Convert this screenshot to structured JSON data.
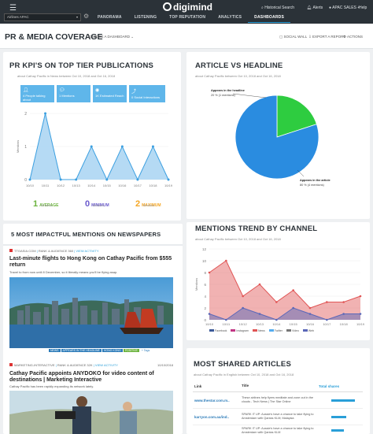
{
  "topbar": {
    "logo": "digimind",
    "account": "Airlines APAC",
    "nav": [
      "PANORAMA",
      "LISTENING",
      "TOP REPUTATION",
      "ANALYTICS",
      "DASHBOARDS"
    ],
    "historical_search": "Historical Search",
    "alerts": "Alerts",
    "user": "APAC SALES +",
    "help": "Help"
  },
  "subbar": {
    "title": "PR & MEDIA COVERAGE",
    "choose": "CHOOSE A DASHBOARD",
    "social_wall": "SOCIAL WALL",
    "export": "EXPORT A REPORT",
    "actions": "ACTIONS"
  },
  "pr_kpis": {
    "title": "PR KPI'S ON TOP TIER PUBLICATIONS",
    "meta": "about Cathay Pacific in News between Oct 10, 2018 and Oct 16, 2018",
    "stats": [
      {
        "value": "4",
        "label": "People talking about"
      },
      {
        "value": "1",
        "label": "Mentions"
      },
      {
        "value": "1K",
        "label": "Estimated Reach"
      },
      {
        "value": "0",
        "label": "Social Interactions"
      }
    ],
    "ylabel": "Mentions",
    "kpis": [
      {
        "value": "1",
        "label": "AVERAGE",
        "sub": "Mentions",
        "color": "#6bb33d"
      },
      {
        "value": "0",
        "label": "MINIMUM",
        "sub": "Mentions",
        "color": "#6a5acd"
      },
      {
        "value": "2",
        "label": "MAXIMUM",
        "sub": "Mentions",
        "color": "#f5a623"
      }
    ]
  },
  "article_vs_headline": {
    "title": "ARTICLE VS HEADLINE",
    "meta": "about Cathay Pacific between Oct 10, 2018 and Oct 16, 2018",
    "label_headline": "Appears in the headline",
    "label_headline_val": "20 % (1 mentions)",
    "label_article": "Appears in the article",
    "label_article_val": "80 % (4 mentions)"
  },
  "impactful": {
    "title": "5 MOST IMPACTFUL MENTIONS ON NEWSPAPERS",
    "items": [
      {
        "source": "TTGASIA.COM",
        "meta": "RANK & AUDIENCE 360",
        "view": "VIEW ACTIVITY",
        "headline": "Last-minute flights to Hong Kong on Cathay Pacific from $555 return",
        "snippet": "Travel to from now until 8 December, so it literally means you'll be flying asap."
      },
      {
        "source": "MARKETING-INTERACTIVE",
        "meta": "RANK & AUDIENCE 32K",
        "view": "VIEW ACTIVITY",
        "date": "10/10/2018",
        "headline": "Cathay Pacific appoints ANYDOKO for video content of destinations | Marketing Interactive",
        "snippet": "Cathay Pacific has been rapidly expanding its network lately."
      }
    ],
    "tags": [
      "NEWS",
      "APPEARS IN THE HEADLINE",
      "HONG KONG",
      "POSITIVE"
    ],
    "tag_more": "+ Tags"
  },
  "mentions_trend": {
    "title": "MENTIONS TREND BY CHANNEL",
    "meta": "about Cathay Pacific between Oct 10, 2018 and Oct 16, 2018",
    "ylabel": "Mentions",
    "legend": [
      "Facebook",
      "Instagram",
      "News",
      "Twitter",
      "Video",
      "Web"
    ]
  },
  "shared": {
    "title": "MOST SHARED ARTICLES",
    "meta": "about Cathay Pacific in English between Oct 10, 2018 and Oct 16, 2018",
    "headers": [
      "Link",
      "Title",
      "Total shares"
    ],
    "rows": [
      {
        "link": "www.thestar.com.m..",
        "title": "These airlines help flyers meditate and zone out in the clouds - Tech News | The Star Online",
        "bar": 0.55
      },
      {
        "link": "karryon.com.au/ind..",
        "title": "SPARK IT UP: Aussie's have a chance to take flying to Amsterdam with Qantas KLM; Malaysia",
        "bar": 0.35
      },
      {
        "link": "",
        "title": "SPARK IT UP: Aussie's have a chance to take flying to Amsterdam with Qantas KLM",
        "bar": 0.3
      }
    ]
  },
  "chart_data": [
    {
      "type": "area",
      "title": "",
      "ylabel": "Mentions",
      "x": [
        "10/10",
        "10/11",
        "10/12",
        "10/13",
        "10/14",
        "10/15",
        "10/16",
        "10/17",
        "10/18",
        "10/19"
      ],
      "series": [
        {
          "values": [
            0,
            2,
            0,
            0,
            1,
            0,
            1,
            0,
            1,
            0
          ]
        }
      ],
      "ylim": [
        0,
        2
      ]
    },
    {
      "type": "pie",
      "title": "",
      "categories": [
        "Appears in the headline",
        "Appears in the article"
      ],
      "values": [
        20,
        80
      ],
      "colors": [
        "#2ecc40",
        "#2a8ce0"
      ]
    },
    {
      "type": "area",
      "title": "",
      "ylabel": "Mentions",
      "x": [
        "10/10",
        "10/11",
        "10/12",
        "10/13",
        "10/14",
        "10/15",
        "10/16",
        "10/17",
        "10/18",
        "10/19"
      ],
      "ylim": [
        0,
        12
      ],
      "series": [
        {
          "name": "Facebook",
          "values": [
            0,
            0,
            0,
            0,
            0,
            0,
            0,
            0,
            0,
            0
          ],
          "color": "#3b5998"
        },
        {
          "name": "Instagram",
          "values": [
            0,
            0,
            0,
            0,
            0,
            0,
            0,
            0,
            0,
            0
          ],
          "color": "#c13584"
        },
        {
          "name": "News",
          "values": [
            8,
            10,
            4,
            6,
            3,
            5,
            2,
            3,
            3,
            4
          ],
          "color": "#e05555"
        },
        {
          "name": "Twitter",
          "values": [
            0,
            0,
            0,
            0,
            0,
            0,
            0,
            0,
            0,
            0
          ],
          "color": "#55acee"
        },
        {
          "name": "Video",
          "values": [
            0,
            0,
            0,
            0,
            0,
            0,
            0,
            0,
            0,
            0
          ],
          "color": "#777777"
        },
        {
          "name": "Web",
          "values": [
            1,
            0,
            2,
            1,
            0,
            2,
            1,
            0,
            1,
            1
          ],
          "color": "#5a67b8"
        }
      ]
    }
  ]
}
